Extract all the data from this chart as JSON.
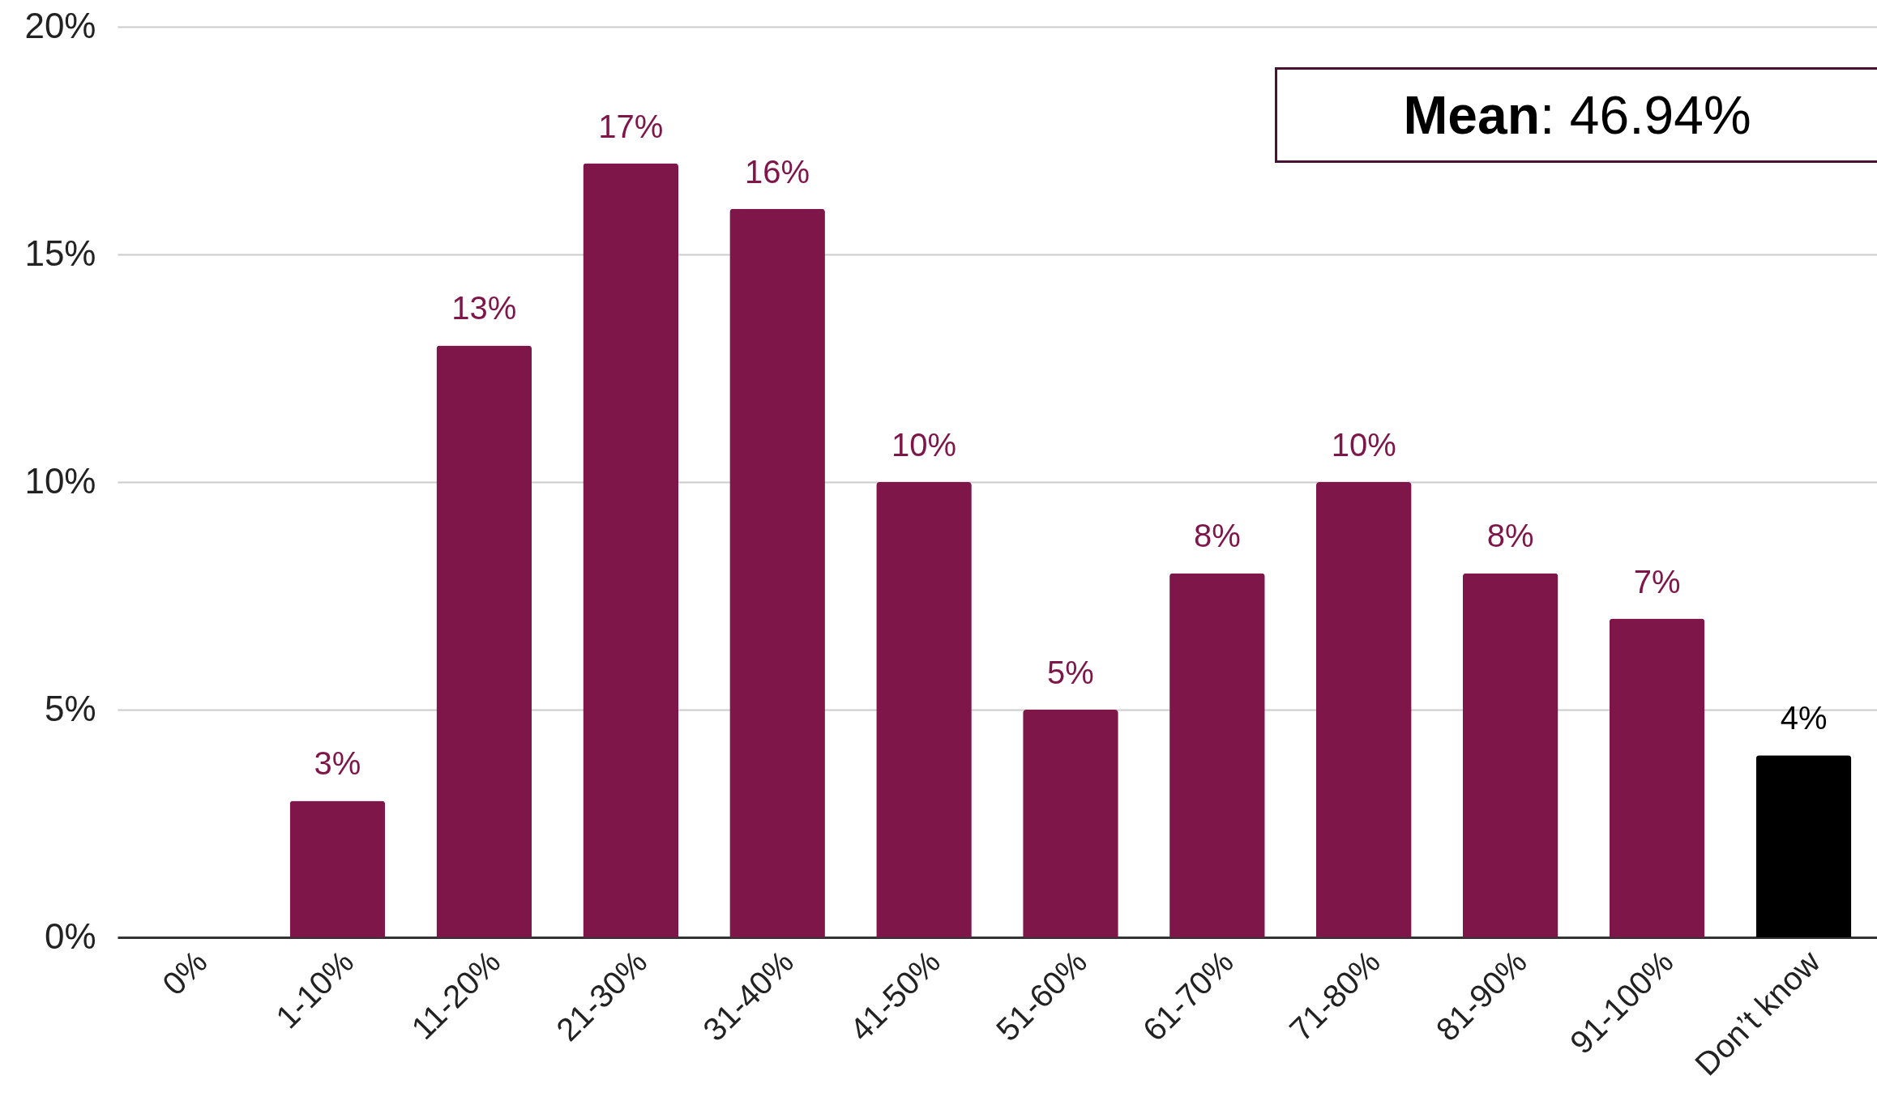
{
  "chart_data": {
    "type": "bar",
    "categories": [
      "0%",
      "1-10%",
      "11-20%",
      "21-30%",
      "31-40%",
      "41-50%",
      "51-60%",
      "61-70%",
      "71-80%",
      "81-90%",
      "91-100%",
      "Don’t know"
    ],
    "values": [
      0,
      3,
      13,
      17,
      16,
      10,
      5,
      8,
      10,
      8,
      7,
      4
    ],
    "colors": [
      "#7f1649",
      "#7f1649",
      "#7f1649",
      "#7f1649",
      "#7f1649",
      "#7f1649",
      "#7f1649",
      "#7f1649",
      "#7f1649",
      "#7f1649",
      "#7f1649",
      "#000000"
    ],
    "value_labels": [
      null,
      "3%",
      "13%",
      "17%",
      "16%",
      "10%",
      "5%",
      "8%",
      "10%",
      "8%",
      "7%",
      "4%"
    ],
    "ylim": [
      0,
      20
    ],
    "yticks": [
      {
        "value": 0,
        "label": "0%"
      },
      {
        "value": 5,
        "label": "5%"
      },
      {
        "value": 10,
        "label": "10%"
      },
      {
        "value": 15,
        "label": "15%"
      },
      {
        "value": 20,
        "label": "20%"
      }
    ],
    "grid": "y",
    "annotations": [
      "Mean: 46.94%"
    ]
  }
}
